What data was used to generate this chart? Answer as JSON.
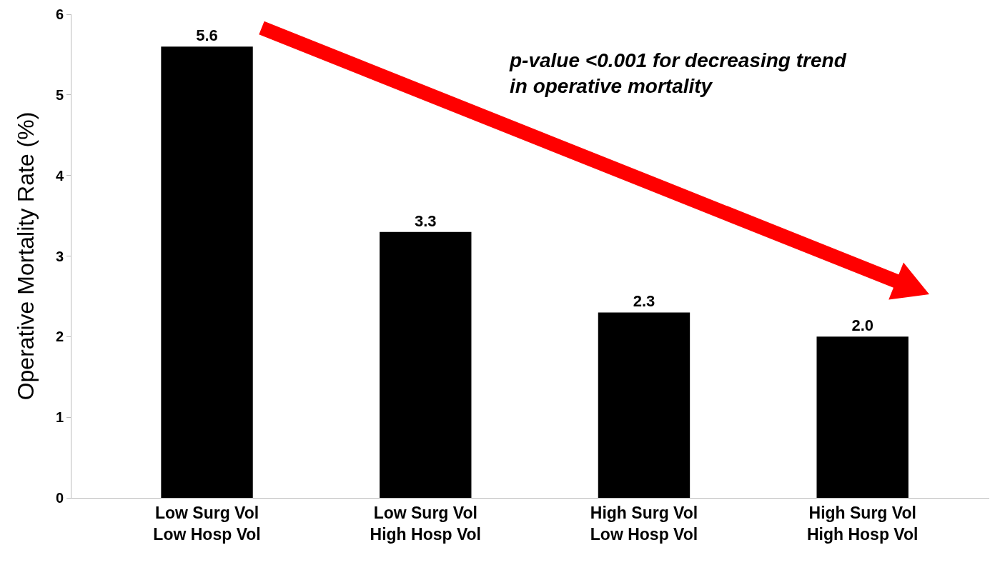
{
  "chart_data": {
    "type": "bar",
    "ylabel": "Operative Mortality Rate (%)",
    "categories": [
      "Low Surg Vol\nLow Hosp Vol",
      "Low Surg Vol\nHigh Hosp Vol",
      "High Surg Vol\nLow Hosp Vol",
      "High Surg Vol\nHigh Hosp Vol"
    ],
    "values": [
      5.6,
      3.3,
      2.3,
      2.0
    ],
    "value_labels": [
      "5.6",
      "3.3",
      "2.3",
      "2.0"
    ],
    "color": "#000000",
    "ylim": [
      0,
      6
    ],
    "yticks": [
      0,
      1,
      2,
      3,
      4,
      5,
      6
    ],
    "grid": false,
    "legend": false,
    "annotations": [
      "p-value <0.001 for decreasing trend\nin operative mortality"
    ]
  }
}
